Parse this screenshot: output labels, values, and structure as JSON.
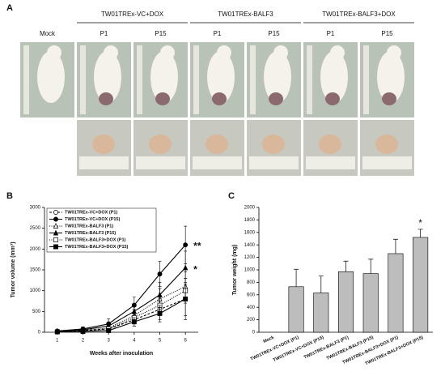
{
  "panel_a": {
    "label": "A",
    "groups": [
      "TW01TREx-VC+DOX",
      "TW01TREx-BALF3",
      "TW01TREx-BALF3+DOX"
    ],
    "columns": [
      "Mock",
      "P1",
      "P15",
      "P1",
      "P15",
      "P1",
      "P15"
    ]
  },
  "chart_data": [
    {
      "type": "line",
      "label": "B",
      "ylabel": "Tumor volume (mm³)",
      "xlabel": "Weeks after inoculation",
      "x": [
        1,
        2,
        3,
        4,
        5,
        6
      ],
      "xlim": [
        0.5,
        6.5
      ],
      "xticks": [
        1,
        2,
        3,
        4,
        5,
        6
      ],
      "ylim": [
        0,
        3000
      ],
      "yticks": [
        0,
        500,
        1000,
        1500,
        2000,
        2500,
        3000
      ],
      "legend": "upper left",
      "annotations": [
        "**",
        "*"
      ],
      "series": [
        {
          "name": "TW01TREx-VC+DOX (P1)",
          "color": "#000000",
          "marker": "circle-open",
          "dash": "dashed",
          "values": [
            20,
            40,
            80,
            300,
            550,
            800
          ],
          "errors": [
            10,
            30,
            60,
            150,
            250,
            400
          ]
        },
        {
          "name": "TW01TREx-VC+DOX (P15)",
          "color": "#000000",
          "marker": "circle-filled",
          "dash": "solid",
          "values": [
            30,
            80,
            200,
            650,
            1400,
            2100
          ],
          "errors": [
            20,
            50,
            120,
            200,
            300,
            450
          ]
        },
        {
          "name": "TW01TREx-BALF3 (P1)",
          "color": "#000000",
          "marker": "triangle-open",
          "dash": "dotted",
          "values": [
            20,
            50,
            100,
            400,
            800,
            1100
          ],
          "errors": [
            10,
            30,
            70,
            150,
            250,
            350
          ]
        },
        {
          "name": "TW01TREx-BALF3 (P15)",
          "color": "#000000",
          "marker": "triangle-filled",
          "dash": "solid",
          "values": [
            20,
            60,
            150,
            500,
            900,
            1550
          ],
          "errors": [
            10,
            40,
            100,
            180,
            300,
            400
          ]
        },
        {
          "name": "TW01TREx-BALF3+DOX (P1)",
          "color": "#000000",
          "marker": "square-open",
          "dash": "dotted",
          "values": [
            10,
            30,
            80,
            350,
            650,
            1000
          ],
          "errors": [
            10,
            20,
            50,
            120,
            200,
            300
          ]
        },
        {
          "name": "TW01TREx-BALF3+DOX (P15)",
          "color": "#000000",
          "marker": "square-filled",
          "dash": "solid",
          "values": [
            10,
            20,
            40,
            250,
            450,
            800
          ],
          "errors": [
            10,
            15,
            30,
            100,
            200,
            500
          ]
        }
      ]
    },
    {
      "type": "bar",
      "label": "C",
      "ylabel": "Tumor weight (mg)",
      "color": "#bdbdbd",
      "categories": [
        "Mock",
        "TW01TREx-VC+DOX (P1)",
        "TW01TREx-VC+DOX (P15)",
        "TW01TREx-BALF3 (P1)",
        "TW01TREx-BALF3 (P15)",
        "TW01TREx-BALF3+DOX (P1)",
        "TW01TREx-BALF3+DOX (P15)"
      ],
      "values": [
        0,
        730,
        630,
        970,
        940,
        1260,
        1520
      ],
      "errors": [
        0,
        280,
        270,
        170,
        230,
        230,
        130
      ],
      "ylim": [
        0,
        2000
      ],
      "yticks": [
        0,
        200,
        400,
        600,
        800,
        1000,
        1200,
        1400,
        1600,
        1800,
        2000
      ],
      "annotations": [
        "*"
      ]
    }
  ]
}
